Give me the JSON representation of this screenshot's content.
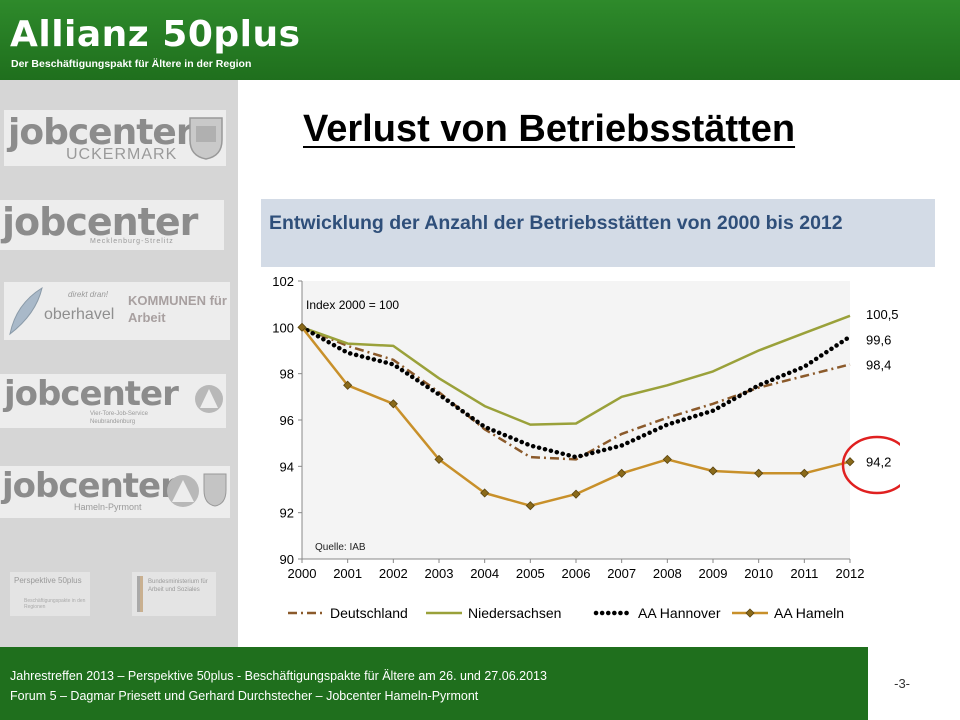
{
  "header": {
    "brand_title": "Allianz 50plus",
    "brand_subtitle": "Der Beschäftigungspakt für Ältere in der Region"
  },
  "sidebar": {
    "logos": [
      {
        "text": "jobcenter",
        "sub": "UCKERMARK"
      },
      {
        "text": "jobcenter",
        "sub": "Mecklenburg-Strelitz"
      },
      {
        "text": "oberhavel",
        "sub": "KOMMUNEN für Arbeit",
        "tag": "direkt dran!"
      },
      {
        "text": "jobcenter",
        "sub": "Vier-Tore-Job-Service Neubrandenburg"
      },
      {
        "text": "jobcenter",
        "sub": "Hameln-Pyrmont"
      },
      {
        "text": "Perspektive 50plus",
        "sub": "Beschäftigungspakte in den Regionen"
      },
      {
        "text": "Bundesministerium für Arbeit und Soziales",
        "sub": ""
      }
    ]
  },
  "slide_title": "Verlust von Betriebsstätten",
  "chart_heading": "Entwicklung der Anzahl der Betriebsstätten von 2000 bis 2012",
  "chart_data": {
    "type": "line",
    "title": "Entwicklung der Anzahl der Betriebsstätten von 2000 bis 2012",
    "x": [
      "2000",
      "2001",
      "2002",
      "2003",
      "2004",
      "2005",
      "2006",
      "2007",
      "2008",
      "2009",
      "2010",
      "2011",
      "2012"
    ],
    "ylim": [
      90,
      102
    ],
    "yticks": [
      90,
      92,
      94,
      96,
      98,
      100,
      102
    ],
    "grid": false,
    "legend": "bottom",
    "annotation_index": "Index 2000 = 100",
    "source": "Quelle: IAB",
    "series": [
      {
        "name": "Deutschland",
        "color": "#8b5a2b",
        "dash": "dashdot",
        "values": [
          100,
          99.2,
          98.6,
          97.2,
          95.6,
          94.4,
          94.3,
          95.4,
          96.1,
          96.7,
          97.4,
          97.9,
          98.4
        ],
        "end_label": "98,4"
      },
      {
        "name": "Niedersachsen",
        "color": "#9aa13a",
        "dash": "solid",
        "values": [
          100,
          99.3,
          99.2,
          97.8,
          96.6,
          95.8,
          95.85,
          97.0,
          97.5,
          98.1,
          99.0,
          99.75,
          100.5
        ],
        "end_label": "100,5"
      },
      {
        "name": "AA Hannover",
        "color": "#000000",
        "dash": "dotted",
        "values": [
          100,
          98.9,
          98.4,
          97.1,
          95.7,
          94.9,
          94.4,
          94.9,
          95.8,
          96.4,
          97.5,
          98.3,
          99.6
        ],
        "end_label": "99,6"
      },
      {
        "name": "AA Hameln",
        "color": "#c8902a",
        "dash": "solid-markers",
        "values": [
          100,
          97.5,
          96.7,
          94.3,
          92.85,
          92.3,
          92.8,
          93.7,
          94.3,
          93.8,
          93.7,
          93.7,
          94.2
        ],
        "end_label": "94,2",
        "highlighted": true
      }
    ]
  },
  "footer": {
    "line1": "Jahrestreffen 2013 – Perspektive 50plus -  Beschäftigungspakte für Ältere am 26. und 27.06.2013",
    "line2": "Forum 5 – Dagmar Priesett und Gerhard Durchstecher – Jobcenter Hameln-Pyrmont",
    "slide_number": "-3-"
  }
}
